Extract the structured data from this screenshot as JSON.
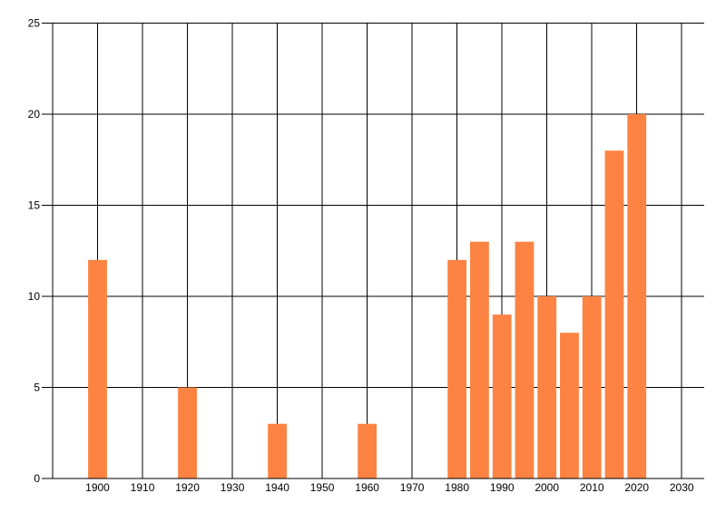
{
  "figure": {
    "background": "#ffffff",
    "bar_color": "#FC8342",
    "grid_color": "#000000",
    "axis_color": "#000000",
    "label_color": "#000000"
  },
  "chart_data": {
    "type": "bar",
    "title": "",
    "xlabel": "",
    "ylabel": "",
    "x": [
      1900,
      1920,
      1940,
      1960,
      1980,
      1985,
      1990,
      1995,
      2000,
      2005,
      2010,
      2015,
      2020
    ],
    "values": [
      12,
      5,
      3,
      3,
      12,
      13,
      9,
      13,
      10,
      8,
      10,
      18,
      20
    ],
    "xlim": [
      1890,
      2035
    ],
    "ylim": [
      0,
      25
    ],
    "xticks": [
      1900,
      1910,
      1920,
      1930,
      1940,
      1950,
      1960,
      1970,
      1980,
      1990,
      2000,
      2010,
      2020,
      2030
    ],
    "yticks": [
      0,
      5,
      10,
      15,
      20,
      25
    ],
    "bar_width_years": 4.2,
    "grid": true,
    "legend": false
  }
}
